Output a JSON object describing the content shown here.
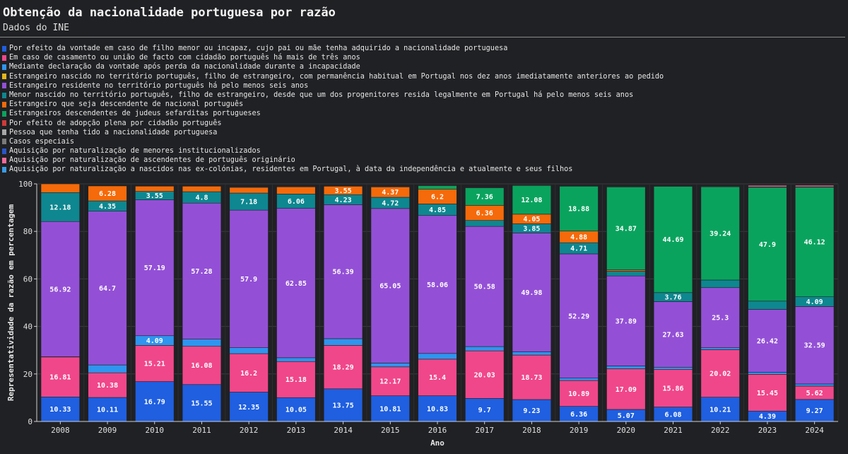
{
  "title": "Obtenção da nacionalidade portuguesa por razão",
  "subtitle": "Dados do INE",
  "chart_data": {
    "type": "bar",
    "stacked": true,
    "xlabel": "Ano",
    "ylabel": "Representatividade da razão em percentagem",
    "ylim": [
      0,
      100
    ],
    "yticks": [
      0,
      20,
      40,
      60,
      80,
      100
    ],
    "grid": true,
    "legend_position": "top",
    "categories": [
      "2008",
      "2009",
      "2010",
      "2011",
      "2012",
      "2013",
      "2014",
      "2015",
      "2016",
      "2017",
      "2018",
      "2019",
      "2020",
      "2021",
      "2022",
      "2023",
      "2024"
    ],
    "series": [
      {
        "name": "Por efeito da vontade em caso de filho menor ou incapaz, cujo pai ou mãe tenha adquirido a nacionalidade portuguesa",
        "color": "#1f5fe0",
        "values": [
          10.33,
          10.11,
          16.79,
          15.55,
          12.35,
          10.05,
          13.75,
          10.81,
          10.83,
          9.7,
          9.23,
          6.36,
          5.07,
          6.08,
          10.21,
          4.39,
          9.27
        ]
      },
      {
        "name": "Em caso de casamento ou união de facto com cidadão português há mais de três anos",
        "color": "#f0478a",
        "values": [
          16.81,
          10.38,
          15.21,
          16.08,
          16.2,
          15.18,
          18.29,
          12.17,
          15.4,
          20.03,
          18.73,
          10.89,
          17.09,
          15.86,
          20.02,
          15.45,
          5.62
        ]
      },
      {
        "name": "Mediante declaração da vontade após perda da nacionalidade durante a incapacidade",
        "color": "#2f95ee",
        "values": [
          0.1,
          3.3,
          4.09,
          3.0,
          2.5,
          1.6,
          2.8,
          1.6,
          2.4,
          1.8,
          1.4,
          1.0,
          1.2,
          0.9,
          0.8,
          0.9,
          0.9
        ]
      },
      {
        "name": "Estrangeiro nascido no território português, filho de estrangeiro, com permanência habitual em Portugal nos dez anos imediatamente anteriores ao pedido",
        "color": "#e3b51b",
        "values": [
          0,
          0,
          0,
          0,
          0,
          0,
          0,
          0,
          0,
          0,
          0,
          0,
          0,
          0,
          0,
          0,
          0
        ]
      },
      {
        "name": "Estrangeiro residente no território português há pelo menos seis anos",
        "color": "#9350d6",
        "values": [
          56.92,
          64.7,
          57.19,
          57.28,
          57.9,
          62.85,
          56.39,
          65.05,
          58.06,
          50.58,
          49.98,
          52.29,
          37.89,
          27.63,
          25.3,
          26.42,
          32.59
        ]
      },
      {
        "name": "Menor nascido no território português, filho de estrangeiro, desde que um dos progenitores resida legalmente em Portugal há pelo menos seis anos",
        "color": "#0e8790",
        "values": [
          12.18,
          4.35,
          3.55,
          4.8,
          7.18,
          6.06,
          4.23,
          4.72,
          4.85,
          2.5,
          3.85,
          4.71,
          2.0,
          3.76,
          3.2,
          3.5,
          4.09
        ]
      },
      {
        "name": "Estrangeiro que seja descendente de nacional português",
        "color": "#f56a0a",
        "values": [
          3.66,
          6.28,
          2.2,
          2.3,
          2.4,
          3.0,
          3.55,
          4.37,
          6.2,
          6.36,
          4.05,
          4.88,
          0.6,
          0,
          0,
          0,
          0
        ]
      },
      {
        "name": "Estrangeiros descendentes de judeus sefarditas portugueses",
        "color": "#0aa35e",
        "values": [
          0,
          0,
          0,
          0,
          0,
          0,
          0,
          0,
          1.5,
          7.36,
          12.08,
          18.88,
          34.87,
          44.69,
          39.24,
          47.9,
          46.12
        ]
      },
      {
        "name": "Por efeito de adopção plena por cidadão português",
        "color": "#d03a3a",
        "values": [
          0,
          0,
          0,
          0,
          0,
          0,
          0,
          0,
          0,
          0,
          0,
          0,
          0,
          0,
          0,
          0,
          0
        ]
      },
      {
        "name": "Pessoa que tenha tido a nacionalidade portuguesa",
        "color": "#a8a8a8",
        "values": [
          0,
          0,
          0,
          0,
          0.2,
          0.2,
          0.2,
          0.2,
          0.2,
          0.2,
          0.2,
          0.2,
          0.2,
          0.2,
          0.2,
          0.2,
          0.2
        ]
      },
      {
        "name": "Casos especiais",
        "color": "#7a7a7a",
        "values": [
          0,
          0,
          0,
          0,
          0,
          0,
          0,
          0,
          0,
          0,
          0,
          0,
          0,
          0,
          0,
          0,
          0
        ]
      },
      {
        "name": "Aquisição por naturalização de menores institucionalizados",
        "color": "#2a55c8",
        "values": [
          0,
          0,
          0,
          0,
          0,
          0,
          0,
          0,
          0,
          0,
          0,
          0,
          0,
          0,
          0,
          0,
          0
        ]
      },
      {
        "name": "Aquisição por naturalização de ascendentes de português originário",
        "color": "#f36b9a",
        "values": [
          0,
          0,
          0,
          0,
          0,
          0,
          0,
          0,
          0,
          0,
          0,
          0,
          0,
          0,
          0,
          0.6,
          0.6
        ]
      },
      {
        "name": "Aquisição por naturalização a nascidos nas ex-colónias, residentes em Portugal, à data da independência e atualmente e seus filhos",
        "color": "#3a9be6",
        "values": [
          0,
          0,
          0,
          0,
          0,
          0,
          0,
          0,
          0,
          0,
          0,
          0,
          0,
          0,
          0,
          0,
          0
        ]
      }
    ],
    "data_labels": [
      {
        "series": 0,
        "values": [
          "10.33",
          "10.11",
          "16.79",
          "15.55",
          "12.35",
          "10.05",
          "13.75",
          "10.81",
          "10.83",
          "9.7",
          "9.23",
          "6.36",
          "5.07",
          "6.08",
          "10.21",
          "4.39",
          "9.27"
        ]
      },
      {
        "series": 1,
        "values": [
          "16.81",
          "10.38",
          "15.21",
          "16.08",
          "16.2",
          "15.18",
          "18.29",
          "12.17",
          "15.4",
          "20.03",
          "18.73",
          "10.89",
          "17.09",
          "15.86",
          "20.02",
          "15.45",
          "5.62"
        ]
      },
      {
        "series": 2,
        "values": [
          "",
          "",
          "4.09",
          "",
          "",
          "",
          "",
          "",
          "",
          "",
          "",
          "",
          "",
          "",
          "",
          "",
          ""
        ]
      },
      {
        "series": 4,
        "values": [
          "56.92",
          "64.7",
          "57.19",
          "57.28",
          "57.9",
          "62.85",
          "56.39",
          "65.05",
          "58.06",
          "50.58",
          "49.98",
          "52.29",
          "37.89",
          "27.63",
          "25.3",
          "26.42",
          "32.59"
        ]
      },
      {
        "series": 5,
        "values": [
          "12.18",
          "4.35",
          "3.55",
          "4.8",
          "7.18",
          "6.06",
          "4.23",
          "4.72",
          "4.85",
          "",
          "3.85",
          "4.71",
          "",
          "3.76",
          "",
          "",
          "4.09"
        ]
      },
      {
        "series": 6,
        "values": [
          "",
          "6.28",
          "",
          "",
          "",
          "",
          "3.55",
          "4.37",
          "6.2",
          "6.36",
          "4.05",
          "4.88",
          "",
          "",
          "",
          "",
          ""
        ]
      },
      {
        "series": 7,
        "values": [
          "",
          "",
          "",
          "",
          "",
          "",
          "",
          "",
          "",
          "7.36",
          "12.08",
          "18.88",
          "34.87",
          "44.69",
          "39.24",
          "47.9",
          "46.12"
        ]
      }
    ]
  }
}
